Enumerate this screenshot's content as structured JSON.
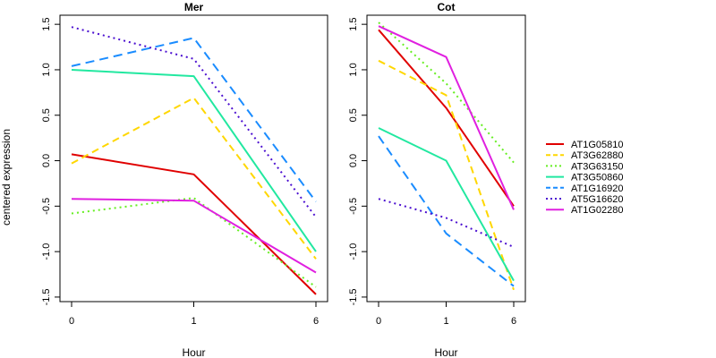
{
  "chart_data": {
    "type": "line",
    "ylabel": "centered expression",
    "x": [
      "0",
      "1",
      "6"
    ],
    "xlabel": "Hour",
    "yticks": [
      "-1.5",
      "-1.0",
      "-0.5",
      "0.0",
      "0.5",
      "1.0",
      "1.5"
    ],
    "ylim": [
      -1.55,
      1.6
    ],
    "legend_position": "right",
    "panels": [
      {
        "title": "Mer",
        "series": [
          {
            "name": "AT1G05810",
            "color": "#e00000",
            "dash": "solid",
            "values": [
              0.07,
              -0.15,
              -1.47
            ]
          },
          {
            "name": "AT3G62880",
            "color": "#ffd700",
            "dash": "dashed",
            "values": [
              -0.03,
              0.69,
              -1.08
            ]
          },
          {
            "name": "AT3G63150",
            "color": "#66ee22",
            "dash": "dotted",
            "values": [
              -0.58,
              -0.41,
              -1.39
            ]
          },
          {
            "name": "AT3G50860",
            "color": "#22e8a0",
            "dash": "solid",
            "values": [
              1.0,
              0.93,
              -1.0
            ]
          },
          {
            "name": "AT1G16920",
            "color": "#1a8cff",
            "dash": "longdash",
            "values": [
              1.04,
              1.35,
              -0.45
            ]
          },
          {
            "name": "AT5G16620",
            "color": "#4b0fd0",
            "dash": "dotted",
            "values": [
              1.47,
              1.12,
              -0.62
            ]
          },
          {
            "name": "AT1G02280",
            "color": "#e020e0",
            "dash": "solid",
            "values": [
              -0.42,
              -0.44,
              -1.23
            ]
          }
        ]
      },
      {
        "title": "Cot",
        "series": [
          {
            "name": "AT1G05810",
            "color": "#e00000",
            "dash": "solid",
            "values": [
              1.44,
              0.58,
              -0.5
            ]
          },
          {
            "name": "AT3G62880",
            "color": "#ffd700",
            "dash": "dashed",
            "values": [
              1.1,
              0.72,
              -1.42
            ]
          },
          {
            "name": "AT3G63150",
            "color": "#66ee22",
            "dash": "dotted",
            "values": [
              1.52,
              0.85,
              -0.02
            ]
          },
          {
            "name": "AT3G50860",
            "color": "#22e8a0",
            "dash": "solid",
            "values": [
              0.36,
              0.0,
              -1.32
            ]
          },
          {
            "name": "AT1G16920",
            "color": "#1a8cff",
            "dash": "longdash",
            "values": [
              0.27,
              -0.8,
              -1.38
            ]
          },
          {
            "name": "AT5G16620",
            "color": "#4b0fd0",
            "dash": "dotted",
            "values": [
              -0.42,
              -0.63,
              -0.95
            ]
          },
          {
            "name": "AT1G02280",
            "color": "#e020e0",
            "dash": "solid",
            "values": [
              1.48,
              1.14,
              -0.54
            ]
          }
        ]
      }
    ]
  }
}
